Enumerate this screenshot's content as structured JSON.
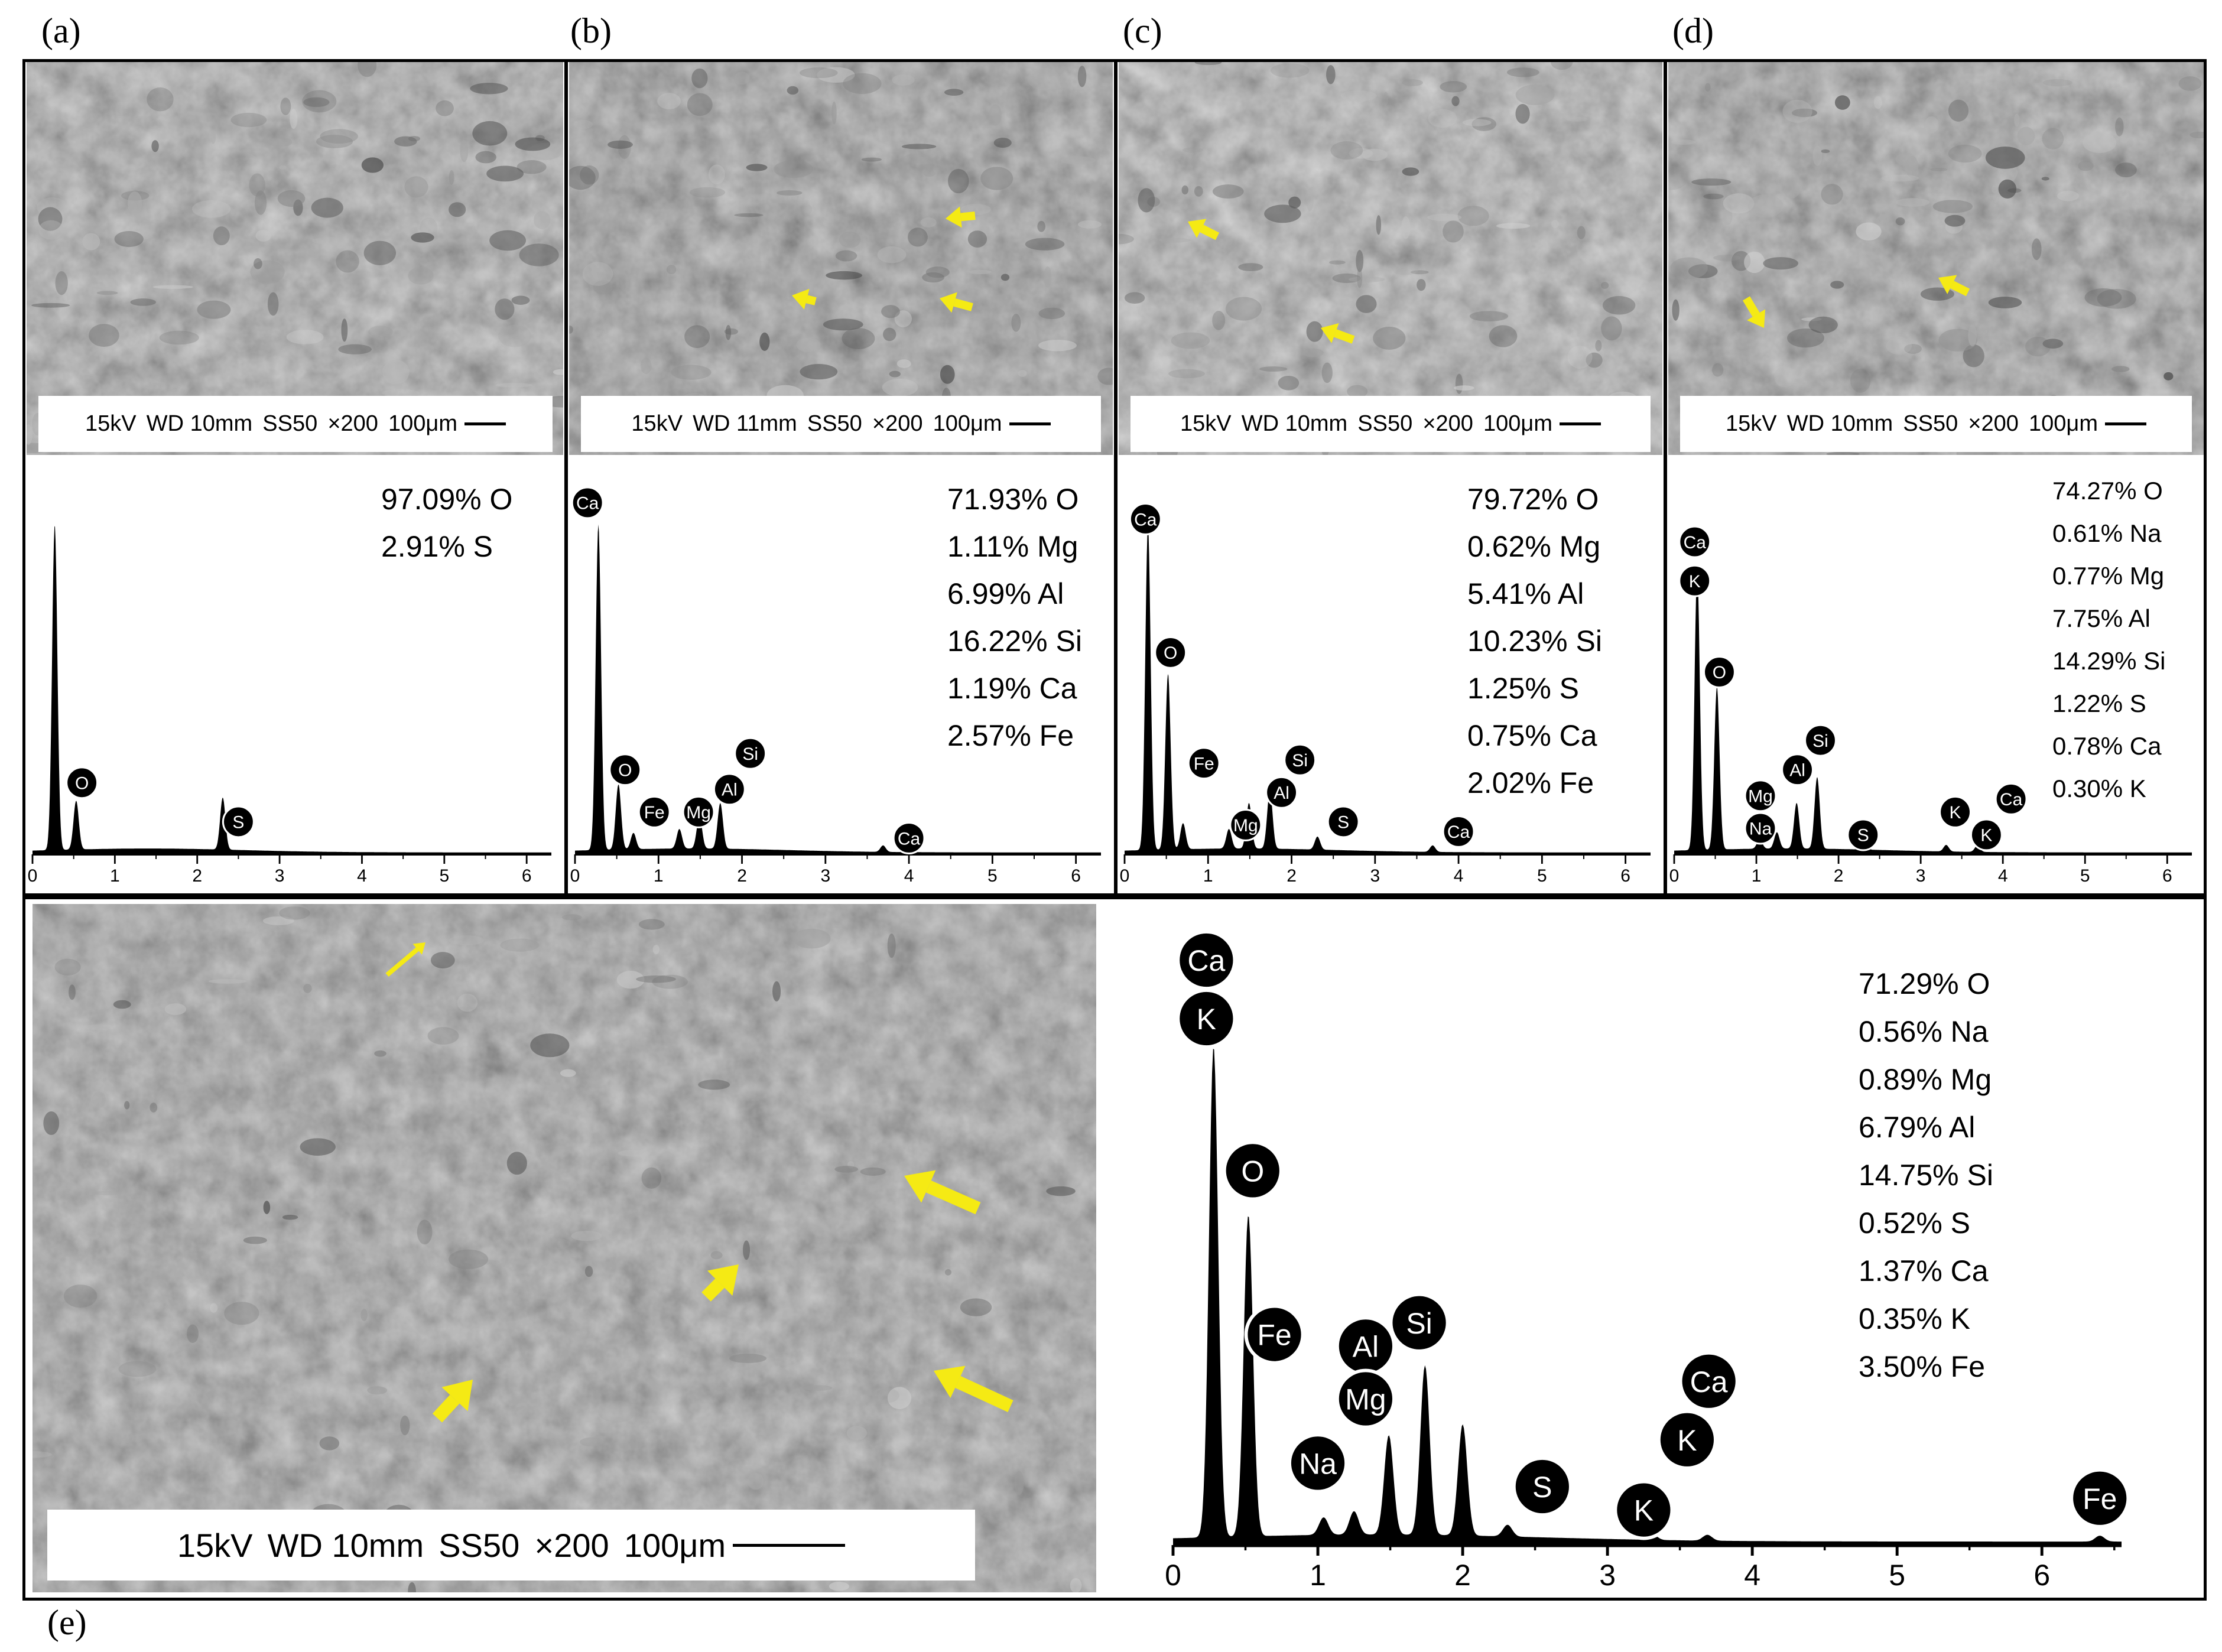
{
  "panel_labels": [
    "(a)",
    "(b)",
    "(c)",
    "(d)",
    "(e)"
  ],
  "sem_caption": {
    "a": {
      "kv": "15kV",
      "wd": "WD 10mm",
      "ss": "SS50",
      "mag": "×200",
      "scale": "100μm"
    },
    "b": {
      "kv": "15kV",
      "wd": "WD 11mm",
      "ss": "SS50",
      "mag": "×200",
      "scale": "100μm"
    },
    "c": {
      "kv": "15kV",
      "wd": "WD 10mm",
      "ss": "SS50",
      "mag": "×200",
      "scale": "100μm"
    },
    "d": {
      "kv": "15kV",
      "wd": "WD 10mm",
      "ss": "SS50",
      "mag": "×200",
      "scale": "100μm"
    },
    "e": {
      "kv": "15kV",
      "wd": "WD 10mm",
      "ss": "SS50",
      "mag": "×200",
      "scale": "100μm"
    }
  },
  "composition": {
    "a": [
      "97.09% O",
      "2.91% S"
    ],
    "b": [
      "71.93% O",
      "1.11% Mg",
      "6.99% Al",
      "16.22% Si",
      "1.19% Ca",
      "2.57% Fe"
    ],
    "c": [
      "79.72% O",
      "0.62% Mg",
      "5.41% Al",
      "10.23% Si",
      "1.25% S",
      "0.75% Ca",
      "2.02% Fe"
    ],
    "d": [
      "74.27% O",
      "0.61% Na",
      "0.77% Mg",
      "7.75% Al",
      "14.29% Si",
      "1.22% S",
      "0.78% Ca",
      "0.30% K"
    ],
    "e": [
      "71.29% O",
      "0.56% Na",
      "0.89% Mg",
      "6.79% Al",
      "14.75% Si",
      "0.52% S",
      "1.37% Ca",
      "0.35% K",
      "3.50% Fe"
    ]
  },
  "chart_data": [
    {
      "panel": "a",
      "type": "line",
      "x_ticks": [
        "0",
        "1",
        "2",
        "3",
        "4",
        "5",
        "6"
      ],
      "xlim": [
        0,
        6.3
      ],
      "peaks": [
        {
          "x": 0.27,
          "h": 1.0
        },
        {
          "x": 0.53,
          "h": 0.15
        },
        {
          "x": 2.31,
          "h": 0.16
        }
      ],
      "element_labels": [
        {
          "el": "O",
          "x": 0.6,
          "h": 0.22
        },
        {
          "el": "S",
          "x": 2.5,
          "h": 0.1
        }
      ]
    },
    {
      "panel": "b",
      "type": "line",
      "x_ticks": [
        "0",
        "1",
        "2",
        "3",
        "4",
        "5",
        "6"
      ],
      "xlim": [
        0,
        6.3
      ],
      "peaks": [
        {
          "x": 0.28,
          "h": 1.0
        },
        {
          "x": 0.52,
          "h": 0.2
        },
        {
          "x": 0.7,
          "h": 0.05
        },
        {
          "x": 1.25,
          "h": 0.06
        },
        {
          "x": 1.49,
          "h": 0.1
        },
        {
          "x": 1.74,
          "h": 0.14
        },
        {
          "x": 3.69,
          "h": 0.02
        }
      ],
      "element_labels": [
        {
          "el": "Ca",
          "x": 0.15,
          "h": 1.08
        },
        {
          "el": "O",
          "x": 0.6,
          "h": 0.26
        },
        {
          "el": "Fe",
          "x": 0.95,
          "h": 0.13
        },
        {
          "el": "Mg",
          "x": 1.48,
          "h": 0.13
        },
        {
          "el": "Al",
          "x": 1.85,
          "h": 0.2
        },
        {
          "el": "Si",
          "x": 2.1,
          "h": 0.31
        },
        {
          "el": "Ca",
          "x": 4.0,
          "h": 0.05
        }
      ]
    },
    {
      "panel": "c",
      "type": "line",
      "x_ticks": [
        "0",
        "1",
        "2",
        "3",
        "4",
        "5",
        "6"
      ],
      "xlim": [
        0,
        6.3
      ],
      "peaks": [
        {
          "x": 0.28,
          "h": 1.0
        },
        {
          "x": 0.52,
          "h": 0.54
        },
        {
          "x": 0.7,
          "h": 0.08
        },
        {
          "x": 1.25,
          "h": 0.06
        },
        {
          "x": 1.49,
          "h": 0.14
        },
        {
          "x": 1.74,
          "h": 0.18
        },
        {
          "x": 2.31,
          "h": 0.04
        },
        {
          "x": 3.69,
          "h": 0.02
        }
      ],
      "element_labels": [
        {
          "el": "Ca",
          "x": 0.25,
          "h": 1.03
        },
        {
          "el": "O",
          "x": 0.55,
          "h": 0.62
        },
        {
          "el": "Fe",
          "x": 0.95,
          "h": 0.28
        },
        {
          "el": "Si",
          "x": 2.1,
          "h": 0.29
        },
        {
          "el": "Al",
          "x": 1.88,
          "h": 0.19
        },
        {
          "el": "Mg",
          "x": 1.45,
          "h": 0.09
        },
        {
          "el": "S",
          "x": 2.62,
          "h": 0.1
        },
        {
          "el": "Ca",
          "x": 4.0,
          "h": 0.07
        }
      ]
    },
    {
      "panel": "d",
      "type": "line",
      "x_ticks": [
        "0",
        "1",
        "2",
        "3",
        "4",
        "5",
        "6"
      ],
      "xlim": [
        0,
        6.3
      ],
      "peaks": [
        {
          "x": 0.28,
          "h": 0.86
        },
        {
          "x": 0.52,
          "h": 0.5
        },
        {
          "x": 1.04,
          "h": 0.03
        },
        {
          "x": 1.25,
          "h": 0.05
        },
        {
          "x": 1.49,
          "h": 0.14
        },
        {
          "x": 1.74,
          "h": 0.22
        },
        {
          "x": 2.31,
          "h": 0.04
        },
        {
          "x": 3.31,
          "h": 0.02
        },
        {
          "x": 3.69,
          "h": 0.02
        }
      ],
      "element_labels": [
        {
          "el": "Ca",
          "x": 0.25,
          "h": 0.96
        },
        {
          "el": "K",
          "x": 0.25,
          "h": 0.84
        },
        {
          "el": "O",
          "x": 0.55,
          "h": 0.56
        },
        {
          "el": "Si",
          "x": 1.78,
          "h": 0.35
        },
        {
          "el": "Al",
          "x": 1.5,
          "h": 0.26
        },
        {
          "el": "Mg",
          "x": 1.05,
          "h": 0.18
        },
        {
          "el": "Na",
          "x": 1.05,
          "h": 0.08
        },
        {
          "el": "S",
          "x": 2.3,
          "h": 0.06
        },
        {
          "el": "K",
          "x": 3.42,
          "h": 0.13
        },
        {
          "el": "Ca",
          "x": 4.1,
          "h": 0.17
        },
        {
          "el": "K",
          "x": 3.8,
          "h": 0.06
        }
      ]
    },
    {
      "panel": "e",
      "type": "line",
      "x_ticks": [
        "0",
        "1",
        "2",
        "3",
        "4",
        "5",
        "6"
      ],
      "xlim": [
        0,
        6.55
      ],
      "peaks": [
        {
          "x": 0.28,
          "h": 0.84
        },
        {
          "x": 0.52,
          "h": 0.55
        },
        {
          "x": 1.04,
          "h": 0.03
        },
        {
          "x": 1.25,
          "h": 0.04
        },
        {
          "x": 1.49,
          "h": 0.17
        },
        {
          "x": 1.74,
          "h": 0.29
        },
        {
          "x": 2.0,
          "h": 0.19
        },
        {
          "x": 2.31,
          "h": 0.02
        },
        {
          "x": 3.31,
          "h": 0.01
        },
        {
          "x": 3.69,
          "h": 0.01
        },
        {
          "x": 6.4,
          "h": 0.01
        }
      ],
      "element_labels": [
        {
          "el": "Ca",
          "x": 0.23,
          "h": 1.0
        },
        {
          "el": "K",
          "x": 0.23,
          "h": 0.9
        },
        {
          "el": "O",
          "x": 0.55,
          "h": 0.64
        },
        {
          "el": "Fe",
          "x": 0.7,
          "h": 0.36
        },
        {
          "el": "Na",
          "x": 1.0,
          "h": 0.14
        },
        {
          "el": "Al",
          "x": 1.33,
          "h": 0.34
        },
        {
          "el": "Mg",
          "x": 1.33,
          "h": 0.25
        },
        {
          "el": "Si",
          "x": 1.7,
          "h": 0.38
        },
        {
          "el": "S",
          "x": 2.55,
          "h": 0.1
        },
        {
          "el": "K",
          "x": 3.25,
          "h": 0.06
        },
        {
          "el": "K",
          "x": 3.55,
          "h": 0.18
        },
        {
          "el": "Ca",
          "x": 3.7,
          "h": 0.28
        },
        {
          "el": "Fe",
          "x": 6.4,
          "h": 0.08
        }
      ]
    }
  ],
  "colors": {
    "arrow": "#f5ea14",
    "peak": "#000000",
    "label_bg": "#000000",
    "label_fg": "#ffffff"
  }
}
